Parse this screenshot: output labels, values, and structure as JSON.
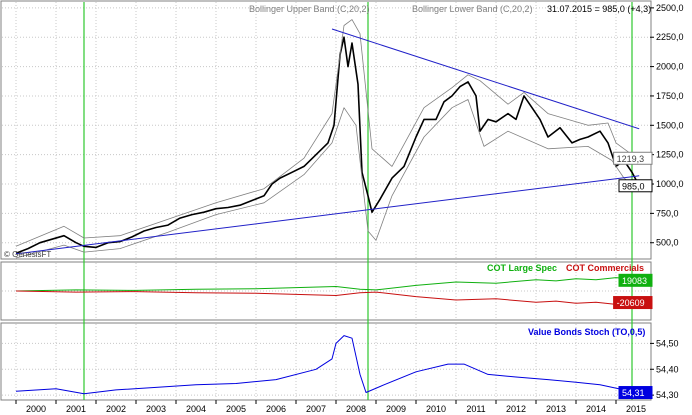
{
  "chart_data": [
    {
      "type": "line",
      "panel": "price",
      "header_left": "Bollinger Upper Band (C,20,2)",
      "header_mid": "Bollinger Lower Band (C,20,2)",
      "header_right": "31.07.2015 = 985,0 (+4,3)",
      "watermark": "© GenesisFT",
      "ylim": [
        370,
        2550
      ],
      "yticks": [
        500,
        750,
        1000,
        1250,
        1500,
        1750,
        2000,
        2250,
        2500
      ],
      "ytick_labels": [
        "500,0",
        "750,0",
        "1000,0",
        "1250,0",
        "1500,0",
        "1750,0",
        "2000,0",
        "2250,0",
        "2500,0"
      ],
      "value_labels": [
        {
          "text": "1219,3",
          "value": 1219.3
        },
        {
          "text": "985,0",
          "value": 985.0
        }
      ],
      "colors": {
        "price": "#000000",
        "bands": "#808080",
        "trendlines": "#2020c8",
        "markers": "#2ec82e"
      },
      "series": [
        {
          "points": [
            [
              2000.0,
              410
            ],
            [
              2000.3,
              450
            ],
            [
              2000.6,
              500
            ],
            [
              2000.9,
              530
            ],
            [
              2001.2,
              560
            ],
            [
              2001.5,
              500
            ],
            [
              2001.7,
              470
            ],
            [
              2002.0,
              460
            ],
            [
              2002.3,
              500
            ],
            [
              2002.6,
              510
            ],
            [
              2002.9,
              550
            ],
            [
              2003.2,
              600
            ],
            [
              2003.5,
              630
            ],
            [
              2003.8,
              650
            ],
            [
              2004.1,
              710
            ],
            [
              2004.4,
              740
            ],
            [
              2004.7,
              760
            ],
            [
              2005.0,
              790
            ],
            [
              2005.3,
              800
            ],
            [
              2005.6,
              820
            ],
            [
              2005.9,
              860
            ],
            [
              2006.2,
              900
            ],
            [
              2006.4,
              1000
            ],
            [
              2006.6,
              1050
            ],
            [
              2006.9,
              1100
            ],
            [
              2007.2,
              1150
            ],
            [
              2007.5,
              1250
            ],
            [
              2007.8,
              1350
            ],
            [
              2007.95,
              1500
            ],
            [
              2008.0,
              1700
            ],
            [
              2008.1,
              2100
            ],
            [
              2008.2,
              2250
            ],
            [
              2008.3,
              2000
            ],
            [
              2008.4,
              2200
            ],
            [
              2008.55,
              1850
            ],
            [
              2008.65,
              1100
            ],
            [
              2008.8,
              900
            ],
            [
              2008.9,
              760
            ],
            [
              2009.1,
              870
            ],
            [
              2009.4,
              1050
            ],
            [
              2009.7,
              1150
            ],
            [
              2010.0,
              1400
            ],
            [
              2010.2,
              1550
            ],
            [
              2010.5,
              1550
            ],
            [
              2010.7,
              1700
            ],
            [
              2010.9,
              1750
            ],
            [
              2011.1,
              1830
            ],
            [
              2011.3,
              1870
            ],
            [
              2011.5,
              1750
            ],
            [
              2011.6,
              1450
            ],
            [
              2011.8,
              1550
            ],
            [
              2012.0,
              1530
            ],
            [
              2012.3,
              1600
            ],
            [
              2012.5,
              1550
            ],
            [
              2012.7,
              1750
            ],
            [
              2012.9,
              1650
            ],
            [
              2013.1,
              1550
            ],
            [
              2013.3,
              1400
            ],
            [
              2013.6,
              1480
            ],
            [
              2013.9,
              1350
            ],
            [
              2014.1,
              1380
            ],
            [
              2014.3,
              1400
            ],
            [
              2014.6,
              1450
            ],
            [
              2014.8,
              1350
            ],
            [
              2015.0,
              1150
            ],
            [
              2015.2,
              1200
            ],
            [
              2015.4,
              1100
            ],
            [
              2015.58,
              985
            ]
          ]
        },
        {
          "points": [
            [
              2000.0,
              470
            ],
            [
              2001.2,
              640
            ],
            [
              2001.7,
              540
            ],
            [
              2002.6,
              560
            ],
            [
              2003.8,
              700
            ],
            [
              2005.0,
              840
            ],
            [
              2006.2,
              960
            ],
            [
              2007.2,
              1220
            ],
            [
              2007.9,
              1600
            ],
            [
              2008.2,
              2350
            ],
            [
              2008.4,
              2400
            ],
            [
              2008.6,
              2280
            ],
            [
              2008.9,
              1300
            ],
            [
              2009.4,
              1150
            ],
            [
              2010.2,
              1650
            ],
            [
              2010.9,
              1820
            ],
            [
              2011.3,
              1930
            ],
            [
              2011.6,
              1880
            ],
            [
              2012.3,
              1680
            ],
            [
              2012.7,
              1780
            ],
            [
              2013.3,
              1600
            ],
            [
              2014.3,
              1500
            ],
            [
              2014.8,
              1520
            ],
            [
              2015.0,
              1350
            ],
            [
              2015.4,
              1250
            ],
            [
              2015.58,
              1219
            ]
          ]
        },
        {
          "points": [
            [
              2000.0,
              370
            ],
            [
              2001.2,
              480
            ],
            [
              2001.7,
              420
            ],
            [
              2002.6,
              450
            ],
            [
              2003.8,
              590
            ],
            [
              2005.0,
              740
            ],
            [
              2006.2,
              840
            ],
            [
              2007.2,
              1080
            ],
            [
              2007.9,
              1350
            ],
            [
              2008.2,
              1650
            ],
            [
              2008.5,
              1500
            ],
            [
              2008.8,
              600
            ],
            [
              2009.0,
              520
            ],
            [
              2009.4,
              900
            ],
            [
              2010.2,
              1400
            ],
            [
              2010.9,
              1650
            ],
            [
              2011.3,
              1720
            ],
            [
              2011.7,
              1320
            ],
            [
              2012.3,
              1450
            ],
            [
              2013.3,
              1300
            ],
            [
              2014.3,
              1320
            ],
            [
              2014.9,
              1200
            ],
            [
              2015.2,
              1050
            ],
            [
              2015.58,
              950
            ]
          ]
        },
        {
          "points": [
            [
              2000.0,
              405
            ],
            [
              2015.58,
              1070
            ]
          ]
        },
        {
          "points": [
            [
              2007.9,
              2320
            ],
            [
              2015.58,
              1470
            ]
          ]
        }
      ]
    },
    {
      "type": "line",
      "panel": "cot",
      "legend": [
        {
          "text": "COT Large Spec",
          "color": "#10b010"
        },
        {
          "text": "COT Commercials",
          "color": "#c81010"
        }
      ],
      "ylim": [
        -50000,
        50000
      ],
      "value_labels": [
        {
          "text": "19083",
          "value": 19083
        },
        {
          "text": "-20609",
          "value": -20609
        }
      ],
      "series": [
        {
          "points": [
            [
              2000.0,
              0
            ],
            [
              2001.5,
              2000
            ],
            [
              2003.0,
              1000
            ],
            [
              2004.5,
              3000
            ],
            [
              2006.0,
              4000
            ],
            [
              2007.0,
              6000
            ],
            [
              2008.0,
              8000
            ],
            [
              2008.6,
              3000
            ],
            [
              2009.0,
              2000
            ],
            [
              2010.0,
              10000
            ],
            [
              2011.0,
              16000
            ],
            [
              2012.0,
              14000
            ],
            [
              2013.0,
              20000
            ],
            [
              2013.5,
              18000
            ],
            [
              2014.0,
              22000
            ],
            [
              2014.5,
              20000
            ],
            [
              2015.0,
              24000
            ],
            [
              2015.58,
              19083
            ]
          ]
        },
        {
          "points": [
            [
              2000.0,
              0
            ],
            [
              2001.5,
              -2000
            ],
            [
              2003.0,
              -1000
            ],
            [
              2004.5,
              -3000
            ],
            [
              2006.0,
              -4000
            ],
            [
              2007.0,
              -6000
            ],
            [
              2008.0,
              -8000
            ],
            [
              2008.6,
              -3000
            ],
            [
              2009.0,
              -2000
            ],
            [
              2010.0,
              -10000
            ],
            [
              2011.0,
              -16000
            ],
            [
              2012.0,
              -14000
            ],
            [
              2013.0,
              -20000
            ],
            [
              2013.5,
              -18000
            ],
            [
              2014.0,
              -22000
            ],
            [
              2014.5,
              -20000
            ],
            [
              2015.0,
              -24000
            ],
            [
              2015.58,
              -20609
            ]
          ]
        }
      ]
    },
    {
      "type": "line",
      "panel": "stoch",
      "legend": [
        {
          "text": "Value Bonds Stoch (TO,0,5)",
          "color": "#0000e0"
        }
      ],
      "ylim": [
        54.285,
        54.575
      ],
      "yticks": [
        54.3,
        54.4,
        54.5
      ],
      "ytick_labels": [
        "54,30",
        "54,40",
        "54,50"
      ],
      "value_labels": [
        {
          "text": "54,31",
          "value": 54.31
        }
      ],
      "series": [
        {
          "points": [
            [
              2000.0,
              54.315
            ],
            [
              2001.0,
              54.325
            ],
            [
              2001.7,
              54.305
            ],
            [
              2002.5,
              54.32
            ],
            [
              2003.5,
              54.33
            ],
            [
              2004.5,
              54.34
            ],
            [
              2005.5,
              54.345
            ],
            [
              2006.5,
              54.36
            ],
            [
              2007.5,
              54.4
            ],
            [
              2007.9,
              54.44
            ],
            [
              2008.0,
              54.5
            ],
            [
              2008.2,
              54.53
            ],
            [
              2008.4,
              54.52
            ],
            [
              2008.6,
              54.38
            ],
            [
              2008.75,
              54.31
            ],
            [
              2009.2,
              54.34
            ],
            [
              2010.0,
              54.39
            ],
            [
              2010.8,
              54.42
            ],
            [
              2011.2,
              54.42
            ],
            [
              2011.8,
              54.38
            ],
            [
              2012.5,
              54.37
            ],
            [
              2013.3,
              54.36
            ],
            [
              2014.0,
              54.35
            ],
            [
              2014.6,
              54.34
            ],
            [
              2015.2,
              54.32
            ],
            [
              2015.58,
              54.31
            ]
          ]
        }
      ]
    }
  ],
  "x_axis": {
    "xlim": [
      1999.65,
      2015.85
    ],
    "year_labels": [
      "2000",
      "2001",
      "2002",
      "2003",
      "2004",
      "2005",
      "2006",
      "2007",
      "2008",
      "2009",
      "2010",
      "2011",
      "2012",
      "2013",
      "2014",
      "2015"
    ],
    "year_starts": [
      2000,
      2001,
      2002,
      2003,
      2004,
      2005,
      2006,
      2007,
      2008,
      2009,
      2010,
      2011,
      2012,
      2013,
      2014,
      2015
    ],
    "markers": [
      2001.7,
      2008.8,
      2015.4
    ]
  }
}
